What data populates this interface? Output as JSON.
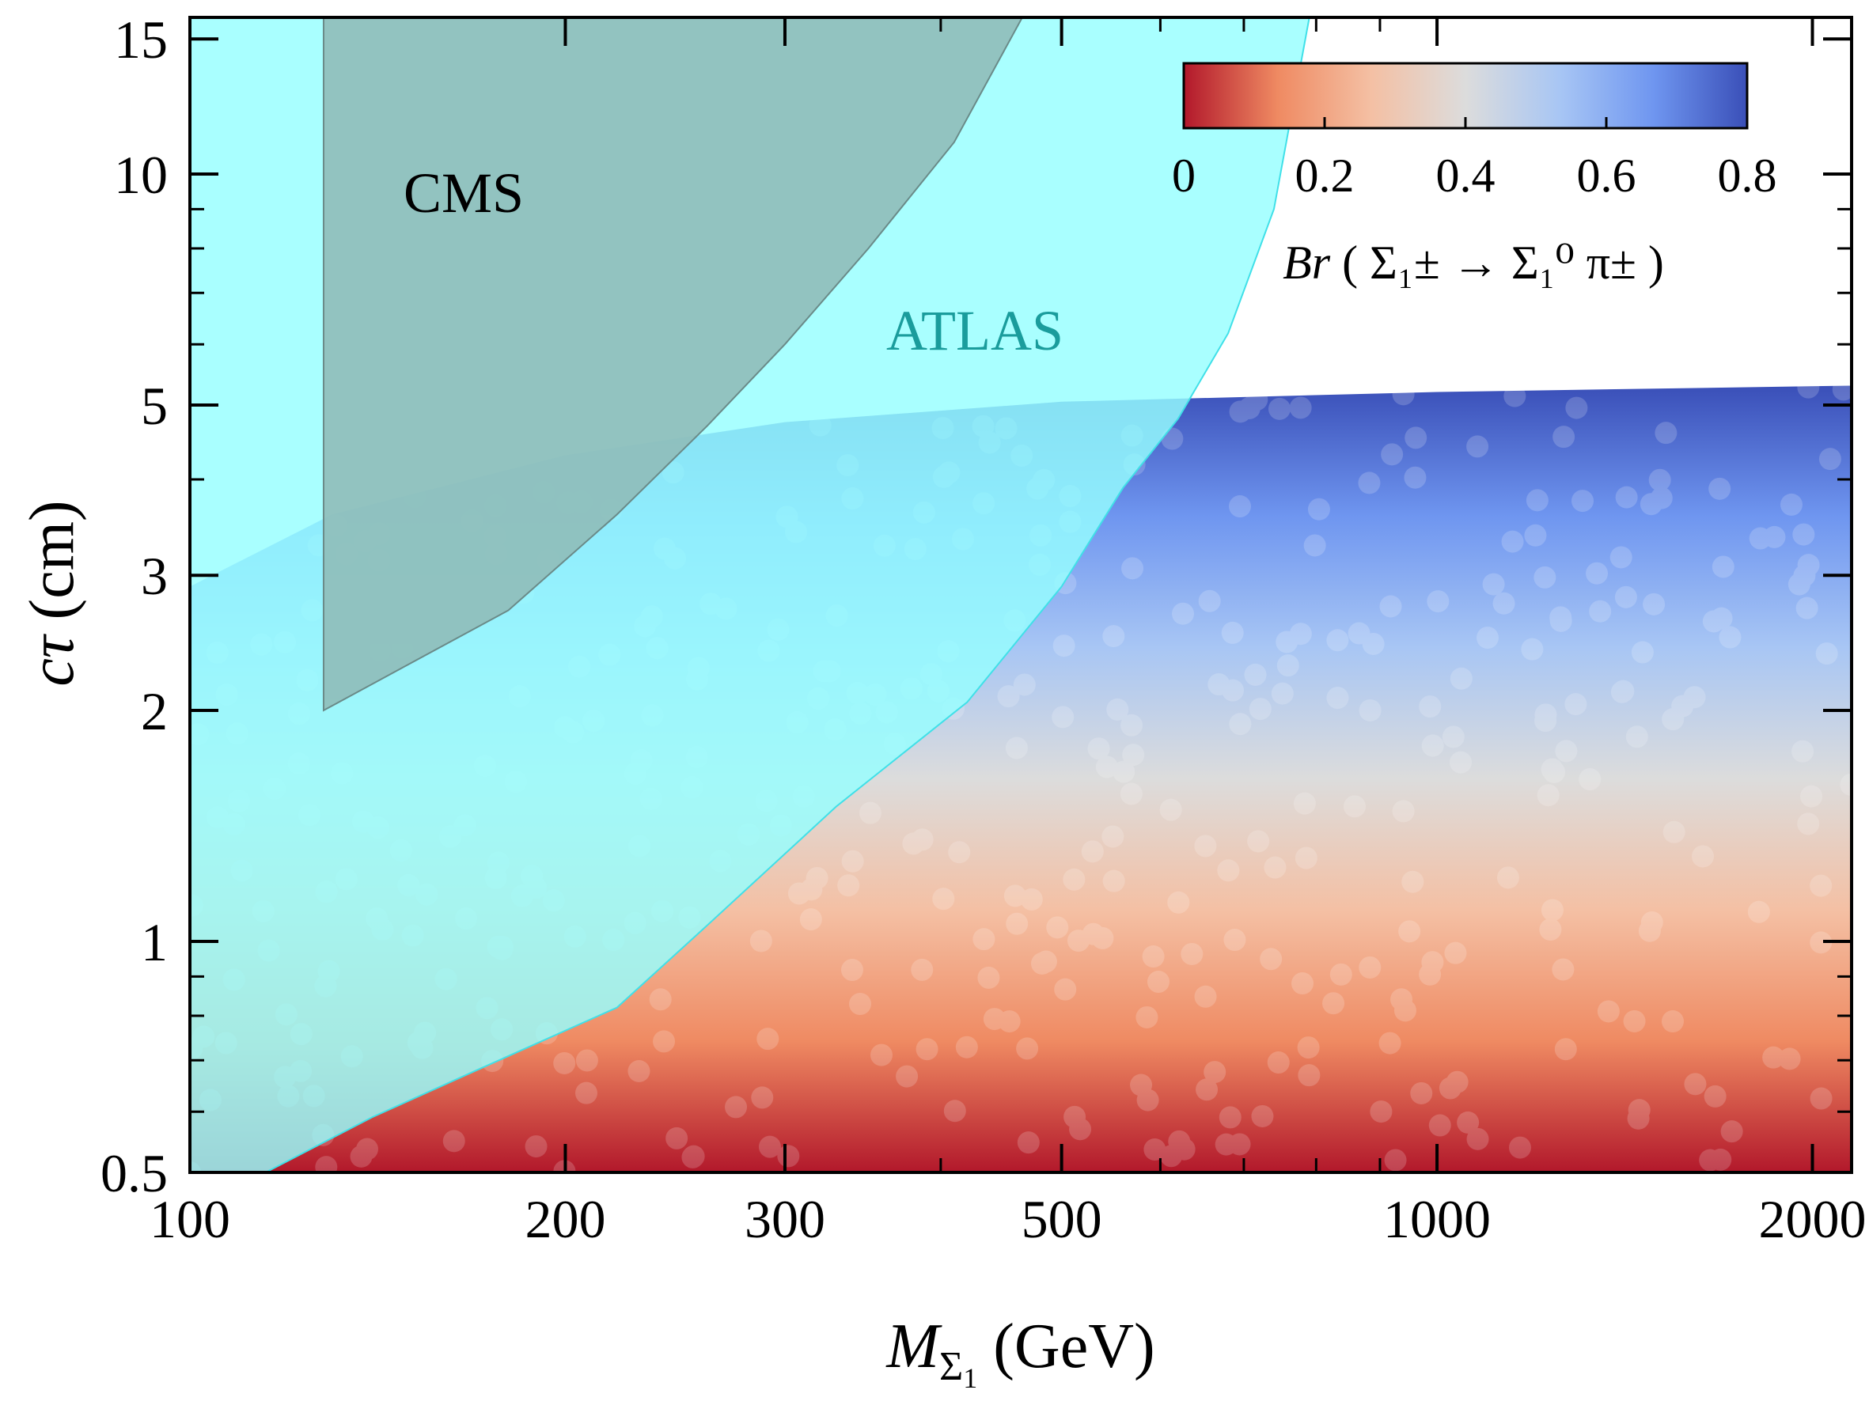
{
  "chart_data": {
    "type": "scatter",
    "xlabel": {
      "main": "M",
      "sub": "Σ",
      "subsub": "1",
      "unit": " (GeV)"
    },
    "ylabel": {
      "main": "cτ",
      "unit": " (cm)"
    },
    "xscale": "log",
    "yscale": "log",
    "xlim": [
      100,
      2150
    ],
    "ylim": [
      0.5,
      16
    ],
    "x_ticks": [
      100,
      200,
      300,
      500,
      1000,
      2000
    ],
    "x_tick_labels": [
      "100",
      "200",
      "300",
      "500",
      "1000",
      "2000"
    ],
    "y_ticks": [
      0.5,
      1,
      2,
      3,
      5,
      10,
      15
    ],
    "y_tick_labels": [
      "0.5",
      "1",
      "2",
      "3",
      "5",
      "10",
      "15"
    ],
    "colorbar": {
      "label_prefix": "Br",
      "label_expression": "( Σ₁± → Σ₁⁰ π± )",
      "range": [
        0,
        0.8
      ],
      "ticks": [
        0,
        0.2,
        0.4,
        0.6,
        0.8
      ],
      "tick_labels": [
        "0",
        "0.2",
        "0.4",
        "0.6",
        "0.8"
      ],
      "colormap": [
        "#b2182b",
        "#ef8a62",
        "#f4c0a4",
        "#dcdcdc",
        "#a8c6f4",
        "#6f96f0",
        "#3a4fb8"
      ],
      "placement": "top-right"
    },
    "scan_region": {
      "description_color_trend": "Br decreases with decreasing cτ",
      "upper_edge_ctau": [
        {
          "x": 100,
          "y": 2.9
        },
        {
          "x": 130,
          "y": 3.6
        },
        {
          "x": 200,
          "y": 4.3
        },
        {
          "x": 300,
          "y": 4.75
        },
        {
          "x": 500,
          "y": 5.05
        },
        {
          "x": 1000,
          "y": 5.2
        },
        {
          "x": 2150,
          "y": 5.3
        }
      ],
      "lower_edge_ctau": 0.5
    },
    "exclusions": [
      {
        "name": "CMS",
        "color": "#8fbdb9",
        "boundary": [
          {
            "x": 128,
            "y": 2.0
          },
          {
            "x": 128,
            "y": 16
          },
          {
            "x": 465,
            "y": 16
          },
          {
            "x": 410,
            "y": 11
          },
          {
            "x": 350,
            "y": 8
          },
          {
            "x": 300,
            "y": 6
          },
          {
            "x": 260,
            "y": 4.7
          },
          {
            "x": 220,
            "y": 3.6
          },
          {
            "x": 180,
            "y": 2.7
          },
          {
            "x": 150,
            "y": 2.3
          }
        ]
      },
      {
        "name": "ATLAS",
        "color": "#96ffff",
        "color_text": "#1a9c9c",
        "boundary": [
          {
            "x": 100,
            "y": 0.5
          },
          {
            "x": 100,
            "y": 16
          },
          {
            "x": 790,
            "y": 16
          },
          {
            "x": 740,
            "y": 9
          },
          {
            "x": 680,
            "y": 6.2
          },
          {
            "x": 620,
            "y": 4.8
          },
          {
            "x": 560,
            "y": 3.9
          },
          {
            "x": 500,
            "y": 2.9
          },
          {
            "x": 420,
            "y": 2.05
          },
          {
            "x": 330,
            "y": 1.5
          },
          {
            "x": 260,
            "y": 1.05
          },
          {
            "x": 220,
            "y": 0.82
          },
          {
            "x": 170,
            "y": 0.68
          },
          {
            "x": 140,
            "y": 0.59
          },
          {
            "x": 115,
            "y": 0.5
          }
        ]
      }
    ]
  }
}
